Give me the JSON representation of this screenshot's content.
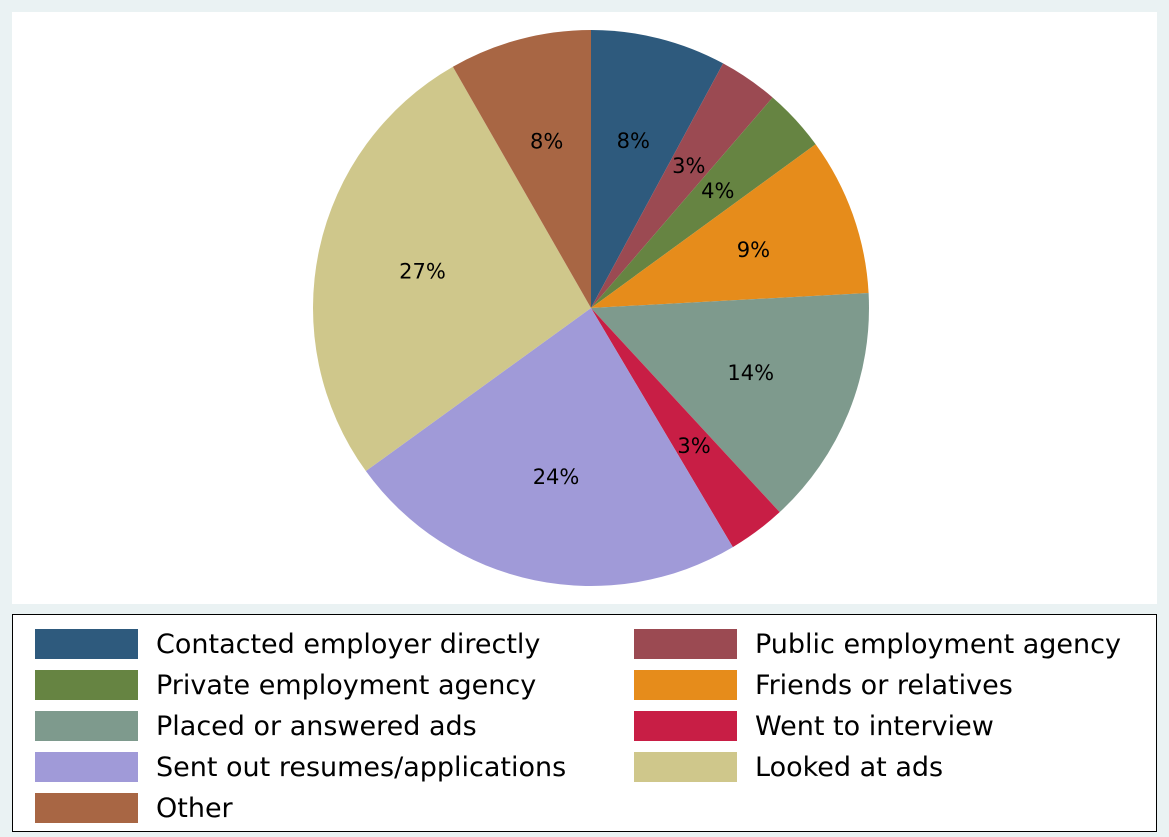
{
  "chart_data": {
    "type": "pie",
    "slices": [
      {
        "label": "Contacted employer directly",
        "value": 8,
        "display": "8%",
        "color": "#2e5a7d"
      },
      {
        "label": "Public employment agency",
        "value": 3.5,
        "display": "3%",
        "color": "#9b4a52"
      },
      {
        "label": "Private employment agency",
        "value": 3.7,
        "display": "4%",
        "color": "#668442"
      },
      {
        "label": "Friends or relatives",
        "value": 9.3,
        "display": "9%",
        "color": "#e68c1b"
      },
      {
        "label": "Placed or answered ads",
        "value": 14.2,
        "display": "14%",
        "color": "#7e9a8d"
      },
      {
        "label": "Went to interview",
        "value": 3.4,
        "display": "3%",
        "color": "#c81e45"
      },
      {
        "label": "Sent out resumes/applications",
        "value": 23.9,
        "display": "24%",
        "color": "#a09ad8"
      },
      {
        "label": "Looked at ads",
        "value": 27.1,
        "display": "27%",
        "color": "#cfc78b"
      },
      {
        "label": "Other",
        "value": 8.4,
        "display": "8%",
        "color": "#a86644"
      }
    ],
    "legend_position": "bottom",
    "legend_columns": 2
  }
}
